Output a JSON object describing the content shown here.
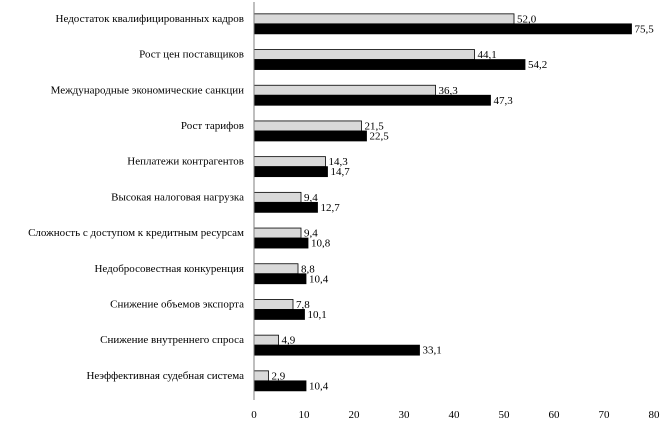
{
  "chart_data": {
    "type": "bar",
    "orientation": "horizontal",
    "title": "",
    "xlabel": "",
    "ylabel": "",
    "xlim": [
      0,
      80
    ],
    "x_ticks": [
      "0",
      "10",
      "20",
      "30",
      "40",
      "50",
      "60",
      "70",
      "80"
    ],
    "grid": false,
    "legend": "none",
    "categories": [
      "Недостаток квалифицированных кадров",
      "Рост цен поставщиков",
      "Международные экономические санкции",
      "Рост тарифов",
      "Неплатежи контрагентов",
      "Высокая налоговая нагрузка",
      "Сложность с доступом к кредитным ресурсам",
      "Недобросовестная конкуренция",
      "Снижение объемов экспорта",
      "Снижение внутреннего спроса",
      "Неэффективная судебная система"
    ],
    "series": [
      {
        "values": [
          52.0,
          44.1,
          36.3,
          21.5,
          14.3,
          9.4,
          9.4,
          8.8,
          7.8,
          4.9,
          2.9
        ],
        "labels": [
          "52,0",
          "44,1",
          "36,3",
          "21,5",
          "14,3",
          "9,4",
          "9,4",
          "8,8",
          "7,8",
          "4,9",
          "2,9"
        ],
        "color": "#d9d9d9"
      },
      {
        "values": [
          75.5,
          54.2,
          47.3,
          22.5,
          14.7,
          12.7,
          10.8,
          10.4,
          10.1,
          33.1,
          10.4
        ],
        "labels": [
          "75,5",
          "54,2",
          "47,3",
          "22,5",
          "14,7",
          "12,7",
          "10,8",
          "10,4",
          "10,1",
          "33,1",
          "10,4"
        ],
        "color": "#000000"
      }
    ]
  }
}
